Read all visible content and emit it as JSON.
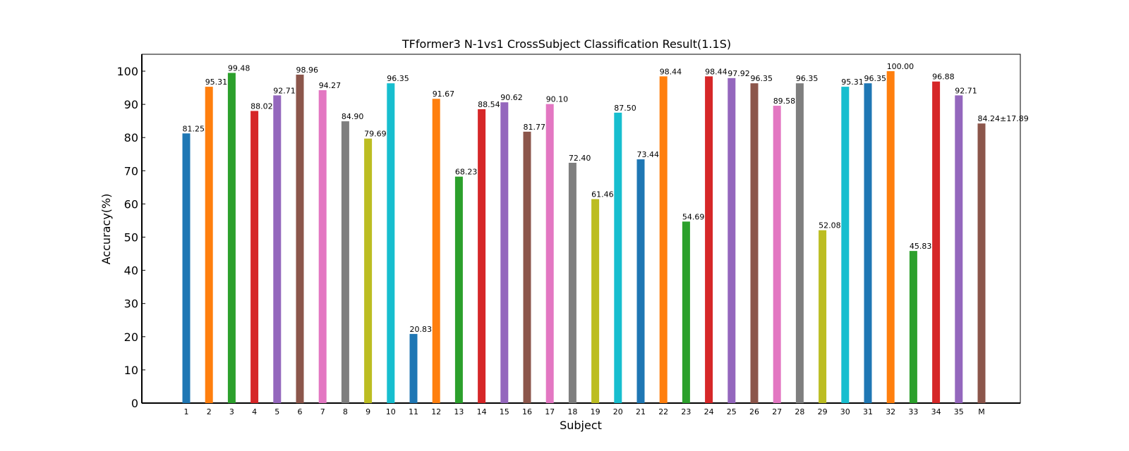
{
  "chart_data": {
    "type": "bar",
    "title": "TFformer3 N-1vs1 CrossSubject Classification Result(1.1S)",
    "xlabel": "Subject",
    "ylabel": "Accuracy(%)",
    "ylim": [
      0,
      105
    ],
    "yticks": [
      0,
      10,
      20,
      30,
      40,
      50,
      60,
      70,
      80,
      90,
      100
    ],
    "grid": false,
    "categories": [
      "1",
      "2",
      "3",
      "4",
      "5",
      "6",
      "7",
      "8",
      "9",
      "10",
      "11",
      "12",
      "13",
      "14",
      "15",
      "16",
      "17",
      "18",
      "19",
      "20",
      "21",
      "22",
      "23",
      "24",
      "25",
      "26",
      "27",
      "28",
      "29",
      "30",
      "31",
      "32",
      "33",
      "34",
      "35",
      "M"
    ],
    "values": [
      81.25,
      95.31,
      99.48,
      88.02,
      92.71,
      98.96,
      94.27,
      84.9,
      79.69,
      96.35,
      20.83,
      91.67,
      68.23,
      88.54,
      90.62,
      81.77,
      90.1,
      72.4,
      61.46,
      87.5,
      73.44,
      98.44,
      54.69,
      98.44,
      97.92,
      96.35,
      89.58,
      96.35,
      52.08,
      95.31,
      96.35,
      100.0,
      45.83,
      96.88,
      92.71,
      84.24
    ],
    "data_labels": [
      "81.25",
      "95.31",
      "99.48",
      "88.02",
      "92.71",
      "98.96",
      "94.27",
      "84.90",
      "79.69",
      "96.35",
      "20.83",
      "91.67",
      "68.23",
      "88.54",
      "90.62",
      "81.77",
      "90.10",
      "72.40",
      "61.46",
      "87.50",
      "73.44",
      "98.44",
      "54.69",
      "98.44",
      "97.92",
      "96.35",
      "89.58",
      "96.35",
      "52.08",
      "95.31",
      "96.35",
      "100.00",
      "45.83",
      "96.88",
      "92.71",
      "84.24±17.89"
    ],
    "colors": [
      "#1f77b4",
      "#ff7f0e",
      "#2ca02c",
      "#d62728",
      "#9467bd",
      "#8c564b",
      "#e377c2",
      "#7f7f7f",
      "#bcbd22",
      "#17becf"
    ],
    "mean_label_color": "#ff0000"
  }
}
